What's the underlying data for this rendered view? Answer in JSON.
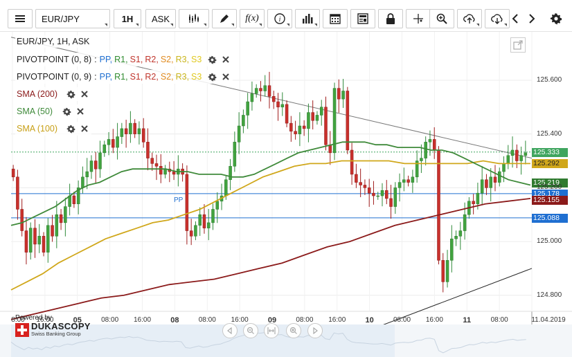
{
  "toolbar": {
    "symbol": "EUR/JPY",
    "timeframe": "1H",
    "price_side": "ASK",
    "buttons": [
      "menu-icon",
      "candles-icon",
      "draw-icon",
      "function-icon",
      "info-icon",
      "volume-icon",
      "calendar-icon",
      "news-icon",
      "lock-icon",
      "crosshair-icon",
      "zoom-icon",
      "upload-icon",
      "download-icon",
      "back-icon",
      "forward-icon",
      "settings-icon"
    ]
  },
  "chart_title": "EUR/JPY, 1H, ASK",
  "indicators": [
    {
      "name": "PIVOTPOINT (0, 8)",
      "levels": [
        "PP",
        "R1",
        "S1",
        "R2",
        "S2",
        "R3",
        "S3"
      ]
    },
    {
      "name": "PIVOTPOINT (0, 9)",
      "levels": [
        "PP",
        "R1",
        "S1",
        "R2",
        "S2",
        "R3",
        "S3"
      ]
    },
    {
      "name": "SMA (200)",
      "color": "#8b1a1a"
    },
    {
      "name": "SMA (50)",
      "color": "#3f8a3a"
    },
    {
      "name": "SMA (100)",
      "color": "#d0a71a"
    }
  ],
  "level_colors": {
    "PP": "#1f6fd1",
    "R1": "#2e8b2e",
    "S1": "#c0342b",
    "R2": "#c0342b",
    "S2": "#e08a1e",
    "R3": "#c9b51c",
    "S3": "#e0c91e"
  },
  "pivot_label": "PP",
  "branding": {
    "powered": "Powered by",
    "name": "DUKASCOPY",
    "sub": "Swiss Banking Group"
  },
  "price_labels": [
    {
      "value": "125.333",
      "color": "#3fa55f"
    },
    {
      "value": "125.292",
      "color": "#d0a71a",
      "text_color": "#222"
    },
    {
      "value": "125.219",
      "color": "#2f7a2f"
    },
    {
      "value": "125.178",
      "color": "#1f6fd1"
    },
    {
      "value": "125.155",
      "color": "#8b1a1a"
    },
    {
      "value": "125.088",
      "color": "#1f6fd1"
    }
  ],
  "chart_data": {
    "type": "candlestick",
    "symbol": "EUR/JPY",
    "interval": "1H",
    "y_ticks": [
      "125.600",
      "125.400",
      "125.200",
      "125.000",
      "124.800"
    ],
    "ylim": [
      124.73,
      125.78
    ],
    "x_ticks": [
      {
        "label": "8:00",
        "bold": false
      },
      {
        "label": "16:00",
        "bold": false
      },
      {
        "label": "05",
        "bold": true
      },
      {
        "label": "08:00",
        "bold": false
      },
      {
        "label": "16:00",
        "bold": false
      },
      {
        "label": "08",
        "bold": true
      },
      {
        "label": "08:00",
        "bold": false
      },
      {
        "label": "16:00",
        "bold": false
      },
      {
        "label": "09",
        "bold": true
      },
      {
        "label": "08:00",
        "bold": false
      },
      {
        "label": "16:00",
        "bold": false
      },
      {
        "label": "10",
        "bold": true
      },
      {
        "label": "08:00",
        "bold": false
      },
      {
        "label": "16:00",
        "bold": false
      },
      {
        "label": "11",
        "bold": true
      },
      {
        "label": "08:00",
        "bold": false
      },
      {
        "label": "11.04.2019",
        "bold": false
      }
    ],
    "candles_close": [
      125.24,
      125.12,
      125.04,
      124.96,
      125.05,
      124.99,
      125.02,
      124.96,
      125.06,
      125.02,
      125.1,
      125.07,
      125.13,
      125.17,
      125.14,
      125.2,
      125.24,
      125.26,
      125.3,
      125.27,
      125.33,
      125.36,
      125.38,
      125.35,
      125.39,
      125.42,
      125.4,
      125.44,
      125.4,
      125.42,
      125.37,
      125.31,
      125.29,
      125.28,
      125.25,
      125.27,
      125.26,
      125.25,
      125.27,
      125.25,
      125.04,
      125.02,
      125.06,
      125.1,
      125.05,
      125.07,
      125.12,
      125.15,
      125.17,
      125.23,
      125.28,
      125.37,
      125.43,
      125.47,
      125.52,
      125.55,
      125.57,
      125.56,
      125.58,
      125.54,
      125.52,
      125.5,
      125.51,
      125.44,
      125.41,
      125.4,
      125.43,
      125.42,
      125.48,
      125.45,
      125.47,
      125.5,
      125.36,
      125.33,
      125.57,
      125.53,
      125.56,
      125.34,
      125.25,
      125.22,
      125.21,
      125.2,
      125.18,
      125.17,
      125.17,
      125.19,
      125.16,
      125.13,
      125.2,
      125.22,
      125.23,
      125.22,
      125.24,
      125.3,
      125.31,
      125.37,
      125.38,
      125.34,
      124.93,
      124.85,
      124.93,
      125.01,
      125.02,
      125.04,
      125.1,
      125.15,
      125.14,
      125.18,
      125.23,
      125.2,
      125.24,
      125.22,
      125.26,
      125.29,
      125.32,
      125.34,
      125.3,
      125.32,
      125.33
    ],
    "sma50": [
      125.06,
      125.07,
      125.09,
      125.11,
      125.13,
      125.16,
      125.19,
      125.21,
      125.22,
      125.24,
      125.26,
      125.27,
      125.27,
      125.27,
      125.27,
      125.26,
      125.26,
      125.25,
      125.25,
      125.25,
      125.24,
      125.24,
      125.25,
      125.27,
      125.29,
      125.31,
      125.33,
      125.34,
      125.35,
      125.36,
      125.37,
      125.37,
      125.37,
      125.36,
      125.36,
      125.35,
      125.35,
      125.35,
      125.34,
      125.34,
      125.33,
      125.31,
      125.29,
      125.27,
      125.25,
      125.23,
      125.22,
      125.21
    ],
    "sma100": [
      124.82,
      124.85,
      124.88,
      124.92,
      124.95,
      124.98,
      125.01,
      125.03,
      125.05,
      125.07,
      125.08,
      125.1,
      125.12,
      125.15,
      125.18,
      125.21,
      125.24,
      125.26,
      125.28,
      125.29,
      125.29,
      125.3,
      125.3,
      125.3,
      125.3,
      125.29,
      125.29,
      125.29,
      125.29,
      125.29,
      125.3,
      125.29,
      125.29,
      125.29
    ],
    "sma200": [
      124.71,
      124.73,
      124.75,
      124.77,
      124.79,
      124.8,
      124.82,
      124.84,
      124.85,
      124.86,
      124.88,
      124.9,
      124.92,
      124.95,
      124.98,
      125.0,
      125.03,
      125.06,
      125.08,
      125.1,
      125.12,
      125.14,
      125.15,
      125.16
    ],
    "pivot_levels": [
      125.178,
      125.088
    ],
    "trend_upper": [
      [
        0.0,
        125.76
      ],
      [
        1.0,
        125.31
      ]
    ],
    "trend_lower": [
      [
        0.66,
        124.65
      ],
      [
        1.0,
        124.9
      ]
    ],
    "last_price": 125.333
  }
}
